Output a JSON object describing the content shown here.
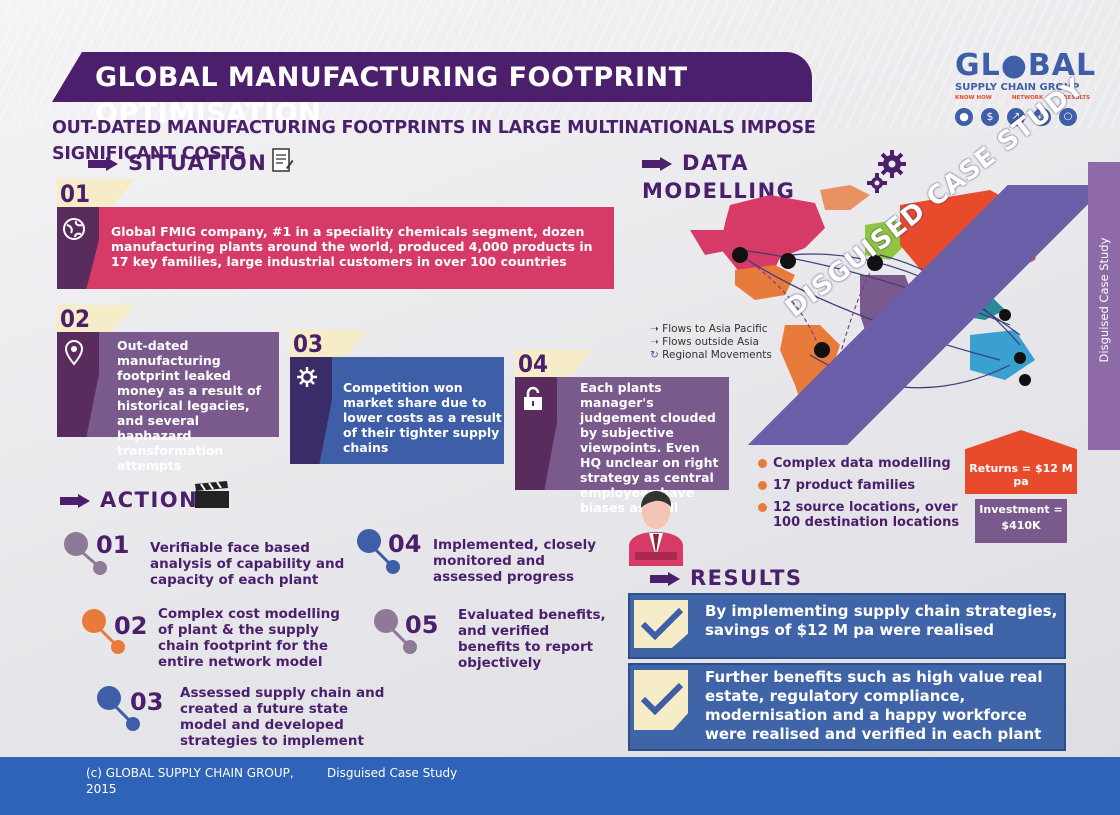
{
  "header": {
    "title": "GLOBAL MANUFACTURING FOOTPRINT OPTIMISATION",
    "subtitle": "OUT-DATED MANUFACTURING FOOTPRINTS IN LARGE MULTINATIONALS IMPOSE SIGNIFICANT COSTS"
  },
  "logo": {
    "brand": "GL●BAL",
    "name": "SUPPLY CHAIN GROUP",
    "tagline": [
      "KNOW HOW",
      "NETWORK",
      "RESULTS"
    ]
  },
  "situation": {
    "heading": "SITUATION",
    "items": [
      {
        "num": "01",
        "text": "Global FMIG company, #1 in a speciality chemicals segment, dozen manufacturing plants around the world, produced 4,000 products in 17 key families, large industrial customers in over 100 countries",
        "color": "#d63a66"
      },
      {
        "num": "02",
        "text": "Out-dated manufacturing footprint leaked money as a result of historical legacies, and several haphazard transformation attempts",
        "color": "#7a5a8c"
      },
      {
        "num": "03",
        "text": "Competition won market share due to lower costs as a result of their tighter supply  chains",
        "color": "#3e5fa7"
      },
      {
        "num": "04",
        "text": "Each plants manager's judgement clouded by subjective viewpoints. Even HQ unclear on right strategy as central employees have biases as well",
        "color": "#7a5a8c"
      }
    ]
  },
  "data_modelling": {
    "heading": "DATA MODELLING",
    "legend": [
      "Flows to Asia Pacific",
      "Flows outside Asia",
      "Regional Movements"
    ],
    "banner": "DISGUISED CASE STUDY",
    "side_label": "Disguised Case Study",
    "bullets": [
      "Complex data modelling",
      "17 product families",
      "12 source locations, over 100 destination locations"
    ],
    "returns": "Returns = $12 M pa",
    "investment_line1": "Investment =",
    "investment_line2": "$410K"
  },
  "actions": {
    "heading": "ACTIONS",
    "items": [
      {
        "num": "01",
        "text": "Verifiable face based analysis of capability and capacity of each plant",
        "color": "#8e7a96"
      },
      {
        "num": "02",
        "text": "Complex cost modelling of plant & the supply chain footprint for the entire network model",
        "color": "#e87b3c"
      },
      {
        "num": "03",
        "text": "Assessed supply chain and created a future state model and developed strategies to implement",
        "color": "#3e5fa7"
      },
      {
        "num": "04",
        "text": "Implemented, closely monitored and assessed progress",
        "color": "#3e5fa7"
      },
      {
        "num": "05",
        "text": "Evaluated benefits, and verified benefits to report objectively",
        "color": "#8e7a96"
      }
    ]
  },
  "results": {
    "heading": "RESULTS",
    "items": [
      "By implementing supply chain strategies, savings of $12 M pa were realised",
      "Further benefits such as high value real estate, regulatory compliance, modernisation and a happy workforce were realised and verified in each plant"
    ]
  },
  "footer": {
    "copyright": "(c) GLOBAL SUPPLY CHAIN GROUP, 2015",
    "note": "Disguised Case Study"
  },
  "colors": {
    "purple": "#4b1f6b",
    "pink": "#d63a66",
    "blue": "#3e5fa7",
    "orange": "#e87b3c",
    "mauve": "#7a5a8c",
    "red": "#e84a2c"
  }
}
